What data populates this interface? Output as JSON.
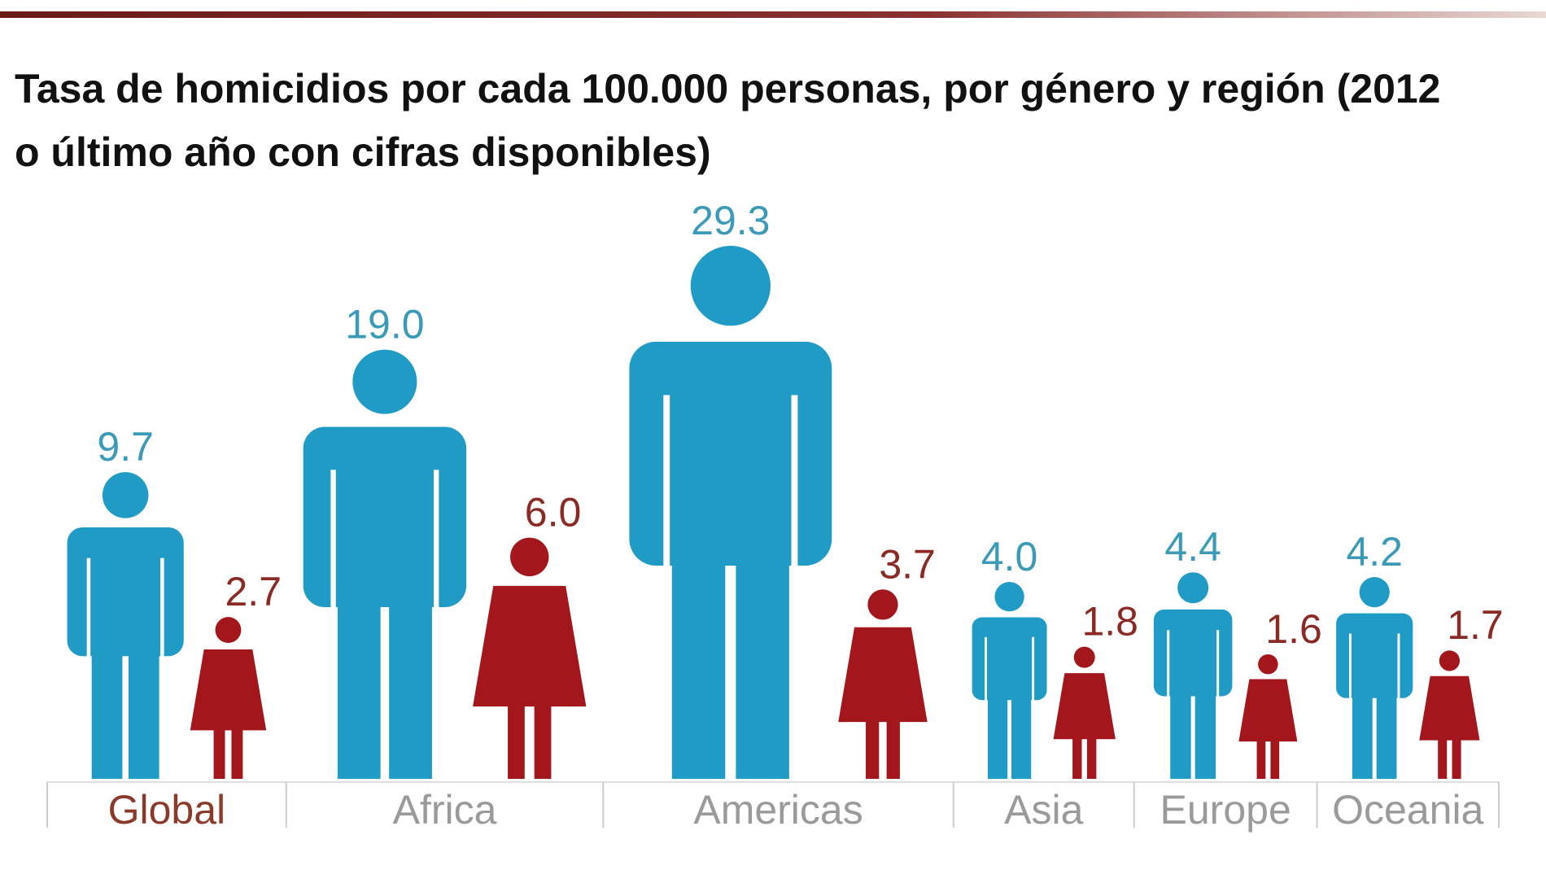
{
  "chart_data": {
    "type": "pictogram",
    "title": "Tasa de homicidios por cada 100.000 personas, por género y región (2012 o último año con cifras disponibles)",
    "categories": [
      "Global",
      "Africa",
      "Americas",
      "Asia",
      "Europe",
      "Oceania"
    ],
    "series": [
      {
        "color": "#1f9bc6",
        "label_color": "#3a9ab8",
        "shape": "male",
        "values": [
          9.7,
          19.0,
          29.3,
          4.0,
          4.4,
          4.2
        ],
        "value_labels": [
          "9.7",
          "19.0",
          "29.3",
          "4.0",
          "4.4",
          "4.2"
        ]
      },
      {
        "color": "#a3161c",
        "label_color": "#8b2a24",
        "shape": "female",
        "values": [
          2.7,
          6.0,
          3.7,
          1.8,
          1.6,
          1.7
        ],
        "value_labels": [
          "2.7",
          "6.0",
          "3.7",
          "1.8",
          "1.6",
          "1.7"
        ]
      }
    ]
  }
}
